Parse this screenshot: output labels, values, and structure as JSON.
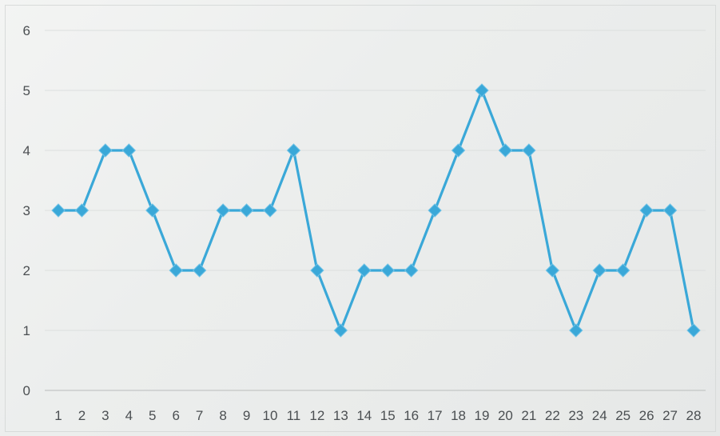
{
  "chart_data": {
    "type": "line",
    "x": [
      1,
      2,
      3,
      4,
      5,
      6,
      7,
      8,
      9,
      10,
      11,
      12,
      13,
      14,
      15,
      16,
      17,
      18,
      19,
      20,
      21,
      22,
      23,
      24,
      25,
      26,
      27,
      28
    ],
    "categories": [
      "1",
      "2",
      "3",
      "4",
      "5",
      "6",
      "7",
      "8",
      "9",
      "10",
      "11",
      "12",
      "13",
      "14",
      "15",
      "16",
      "17",
      "18",
      "19",
      "20",
      "21",
      "22",
      "23",
      "24",
      "25",
      "26",
      "27",
      "28"
    ],
    "series": [
      {
        "values": [
          3,
          3,
          4,
          4,
          3,
          2,
          2,
          3,
          3,
          3,
          4,
          2,
          1,
          2,
          2,
          2,
          3,
          4,
          5,
          4,
          4,
          2,
          1,
          2,
          2,
          3,
          3,
          1
        ],
        "color": "#3aa8d8",
        "marker": "diamond"
      }
    ],
    "yticks": [
      "0",
      "1",
      "2",
      "3",
      "4",
      "5",
      "6"
    ],
    "ylim": [
      0,
      6
    ],
    "title": "",
    "xlabel": "",
    "ylabel": "",
    "grid": true,
    "legend": "none"
  }
}
